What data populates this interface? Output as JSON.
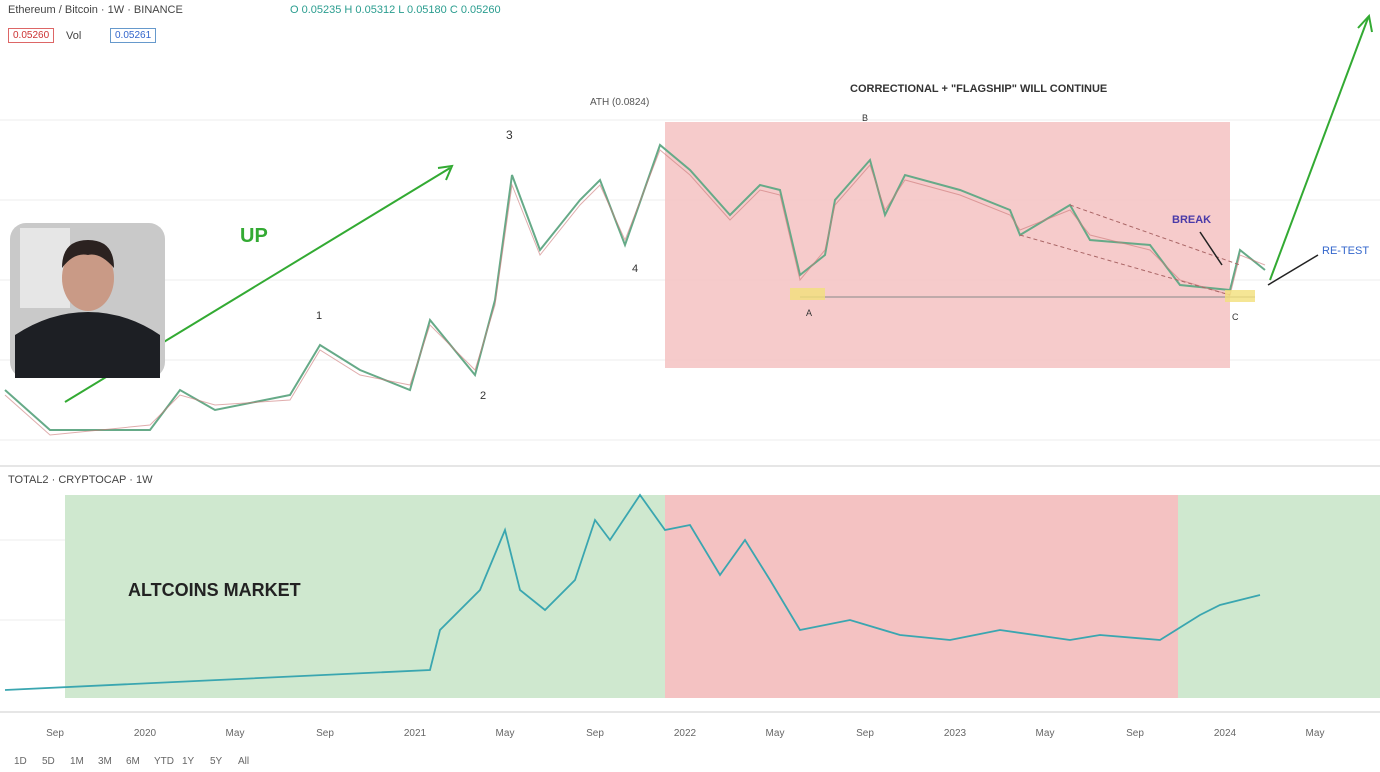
{
  "header": {
    "symbol": "Ethereum / Bitcoin · 1W · BINANCE",
    "ohlc": "O 0.05235 H 0.05312 L 0.05180 C 0.05260",
    "sell": "0.05260",
    "buy": "0.05261",
    "volume": "Vol"
  },
  "annotations": {
    "up": "UP",
    "correction": "CORRECTIONAL + \"FLAGSHIP\" WILL CONTINUE",
    "break": "BREAK",
    "retest": "RE-TEST",
    "ath": "ATH (0.0824)",
    "wave_1": "1",
    "wave_2": "2",
    "wave_3": "3",
    "wave_4": "4",
    "wave_a": "A",
    "wave_b": "B",
    "wave_c": "C",
    "altcoins": "ALTCOINS MARKET"
  },
  "indicator": {
    "label": "TOTAL2 · CRYPTOCAP · 1W"
  },
  "time_axis": [
    "Sep",
    "2020",
    "May",
    "Sep",
    "2021",
    "May",
    "Sep",
    "2022",
    "May",
    "Sep",
    "2023",
    "May",
    "Sep",
    "2024",
    "May"
  ],
  "ranges": [
    "1D",
    "5D",
    "1M",
    "3M",
    "6M",
    "YTD",
    "1Y",
    "5Y",
    "All"
  ]
}
